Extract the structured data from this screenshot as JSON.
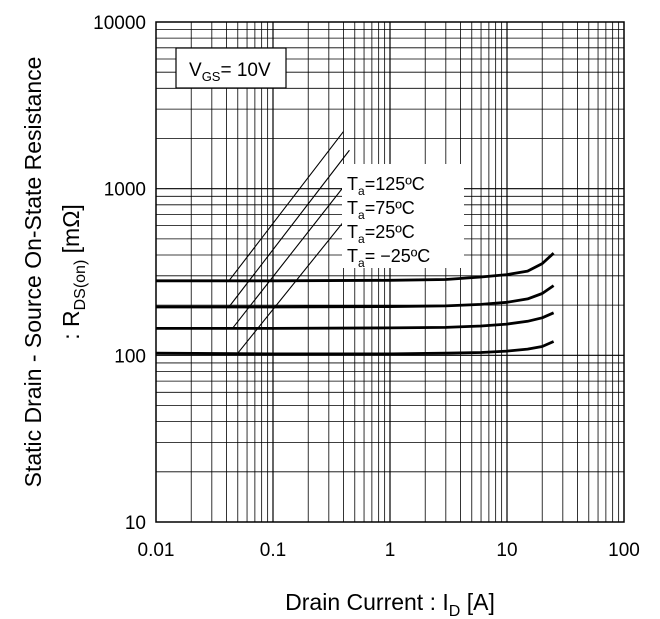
{
  "chart_data": {
    "type": "line",
    "xscale": "log",
    "yscale": "log",
    "xlim": [
      0.01,
      100
    ],
    "ylim": [
      10,
      10000
    ],
    "grid": true,
    "x_tick_labels": [
      "0.01",
      "0.1",
      "1",
      "10",
      "100"
    ],
    "y_tick_labels": [
      "10",
      "100",
      "1000",
      "10000"
    ],
    "xlabel": {
      "main": "Drain Current : I",
      "sub": "D",
      "unit": " [A]"
    },
    "ylabel": {
      "line1": "Static Drain - Source On-State Resistance",
      "line2_main": ": R",
      "line2_sub": "DS(on)",
      "line2_unit": " [mΩ]"
    },
    "condition": {
      "main": "V",
      "sub": "GS",
      "value": "= 10V"
    },
    "series": [
      {
        "name": "Ta=125ºC",
        "label_sub": "a",
        "label_main": "T",
        "label_value": "=125ºC",
        "x": [
          0.01,
          0.1,
          1,
          3,
          6,
          10,
          15,
          20,
          25
        ],
        "y": [
          280,
          280,
          282,
          285,
          295,
          305,
          320,
          355,
          410
        ]
      },
      {
        "name": "Ta=75ºC",
        "label_sub": "a",
        "label_main": "T",
        "label_value": "=75ºC",
        "x": [
          0.01,
          0.1,
          1,
          3,
          6,
          10,
          15,
          20,
          25
        ],
        "y": [
          195,
          195,
          196,
          198,
          202,
          208,
          218,
          235,
          262
        ]
      },
      {
        "name": "Ta=25ºC",
        "label_sub": "a",
        "label_main": "T",
        "label_value": "=25ºC",
        "x": [
          0.01,
          0.1,
          1,
          3,
          6,
          10,
          15,
          20,
          25
        ],
        "y": [
          145,
          145,
          146,
          147,
          150,
          154,
          160,
          168,
          180
        ]
      },
      {
        "name": "Ta=-25ºC",
        "label_sub": "a",
        "label_main": "T",
        "label_value": "= −25ºC",
        "x": [
          0.01,
          0.1,
          1,
          3,
          6,
          10,
          15,
          20,
          25
        ],
        "y": [
          103,
          102,
          102,
          103,
          104,
          106,
          109,
          113,
          121
        ]
      }
    ],
    "annotation_lines": [
      {
        "x": [
          0.042,
          0.4
        ],
        "y": [
          280,
          2200
        ]
      },
      {
        "x": [
          0.042,
          0.45
        ],
        "y": [
          195,
          1700
        ]
      },
      {
        "x": [
          0.045,
          0.5
        ],
        "y": [
          145,
          1250
        ]
      },
      {
        "x": [
          0.05,
          0.6
        ],
        "y": [
          103,
          900
        ]
      }
    ]
  }
}
